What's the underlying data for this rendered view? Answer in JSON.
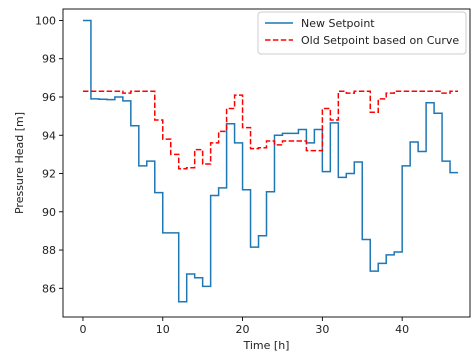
{
  "chart_data": {
    "type": "line",
    "xlabel": "Time [h]",
    "ylabel": "Pressure Head [m]",
    "xlim": [
      -2.5,
      48.5
    ],
    "ylim": [
      84.5,
      100.6
    ],
    "xticks": [
      0,
      10,
      20,
      30,
      40
    ],
    "yticks": [
      86,
      88,
      90,
      92,
      94,
      96,
      98,
      100
    ],
    "grid": false,
    "legend_position": "upper-right",
    "step": "post",
    "series": [
      {
        "name": "New Setpoint",
        "color": "#1f77b4",
        "dash": "solid",
        "x": [
          0,
          1,
          2,
          3,
          4,
          5,
          6,
          7,
          8,
          9,
          10,
          11,
          12,
          13,
          14,
          15,
          16,
          17,
          18,
          19,
          20,
          21,
          22,
          23,
          24,
          25,
          26,
          27,
          28,
          29,
          30,
          31,
          32,
          33,
          34,
          35,
          36,
          37,
          38,
          39,
          40,
          41,
          42,
          43,
          44,
          45,
          46,
          47
        ],
        "y": [
          100.0,
          95.9,
          95.88,
          95.86,
          96.0,
          95.8,
          94.5,
          92.4,
          92.65,
          91.0,
          88.9,
          88.9,
          85.3,
          86.75,
          86.55,
          86.1,
          90.85,
          91.25,
          94.6,
          93.6,
          91.15,
          88.15,
          88.75,
          91.05,
          94.0,
          94.1,
          94.1,
          94.3,
          93.6,
          94.3,
          92.1,
          94.65,
          91.8,
          92.0,
          92.6,
          88.55,
          86.9,
          87.3,
          87.75,
          87.9,
          92.4,
          93.65,
          93.15,
          95.7,
          95.15,
          92.65,
          92.05,
          92.05
        ]
      },
      {
        "name": "Old Setpoint based on Curve",
        "color": "#ff0000",
        "dash": "dashed",
        "x": [
          0,
          1,
          2,
          3,
          4,
          5,
          6,
          7,
          8,
          9,
          10,
          11,
          12,
          13,
          14,
          15,
          16,
          17,
          18,
          19,
          20,
          21,
          22,
          23,
          24,
          25,
          26,
          27,
          28,
          29,
          30,
          31,
          32,
          33,
          34,
          35,
          36,
          37,
          38,
          39,
          40,
          41,
          42,
          43,
          44,
          45,
          46,
          47
        ],
        "y": [
          96.3,
          96.3,
          96.3,
          96.3,
          96.3,
          96.2,
          96.3,
          96.3,
          96.3,
          94.8,
          93.8,
          93.0,
          92.25,
          92.3,
          93.25,
          92.5,
          93.6,
          94.2,
          95.4,
          96.1,
          94.4,
          93.3,
          93.35,
          93.7,
          93.5,
          93.7,
          93.7,
          93.7,
          93.2,
          93.2,
          95.4,
          94.8,
          96.3,
          96.2,
          96.3,
          96.3,
          95.2,
          95.9,
          96.2,
          96.3,
          96.3,
          96.3,
          96.3,
          96.3,
          96.3,
          96.2,
          96.3,
          96.3
        ]
      }
    ]
  }
}
